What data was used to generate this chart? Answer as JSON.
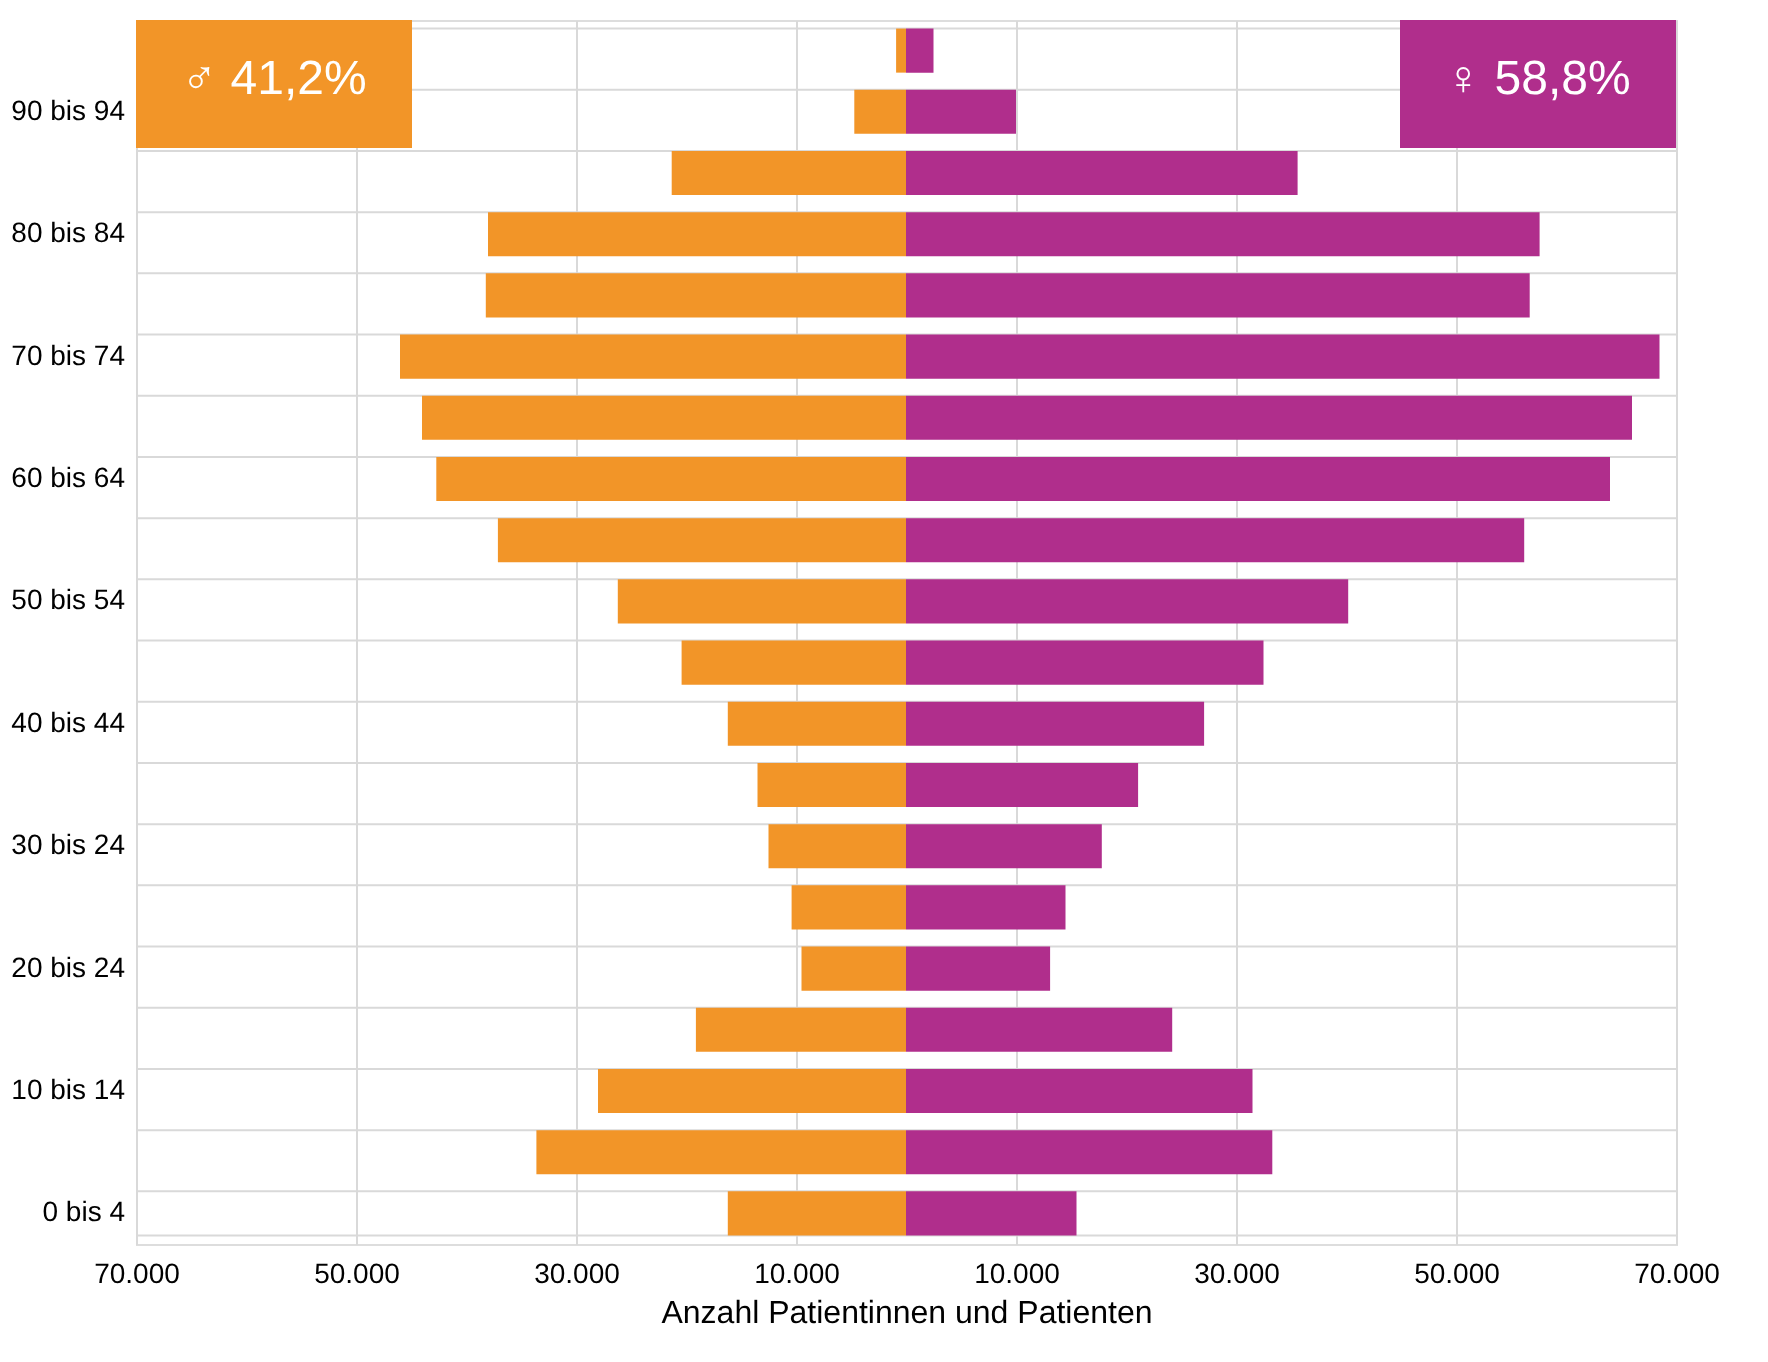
{
  "chart_data": {
    "type": "bar",
    "orientation": "horizontal",
    "xlabel": "Anzahl Patientinnen und Patienten",
    "categories": [
      null,
      "90 bis 94",
      null,
      "80 bis 84",
      null,
      "70 bis 74",
      null,
      "60 bis 64",
      null,
      "50 bis 54",
      null,
      "40 bis 44",
      null,
      "30 bis 24",
      null,
      "20 bis 24",
      null,
      "10 bis 14",
      null,
      "0 bis 4"
    ],
    "series": [
      {
        "color": "#f29528",
        "values": [
          -900,
          -4700,
          -21300,
          -38000,
          -38200,
          -46000,
          -44000,
          -42700,
          -37100,
          -26200,
          -20400,
          -16200,
          -13500,
          -12500,
          -10400,
          -9500,
          -19100,
          -28000,
          -33600,
          -16200
        ]
      },
      {
        "color": "#b02e8c",
        "values": [
          2500,
          10000,
          35600,
          57600,
          56700,
          68500,
          66000,
          64000,
          56200,
          40200,
          32500,
          27100,
          21100,
          17800,
          14500,
          13100,
          24200,
          31500,
          33300,
          15500
        ]
      }
    ],
    "xlim": [
      -70000,
      70000
    ],
    "xticks": [
      {
        "value": -70000,
        "label": "70.000"
      },
      {
        "value": -50000,
        "label": "50.000"
      },
      {
        "value": -30000,
        "label": "30.000"
      },
      {
        "value": -10000,
        "label": "10.000"
      },
      {
        "value": 10000,
        "label": "10.000"
      },
      {
        "value": 30000,
        "label": "30.000"
      },
      {
        "value": 50000,
        "label": "50.000"
      },
      {
        "value": 70000,
        "label": "70.000"
      }
    ],
    "annotations": [
      "♂ 41,2%",
      "♀ 58,8%"
    ],
    "grid": true,
    "stacked": true,
    "legend": false
  }
}
